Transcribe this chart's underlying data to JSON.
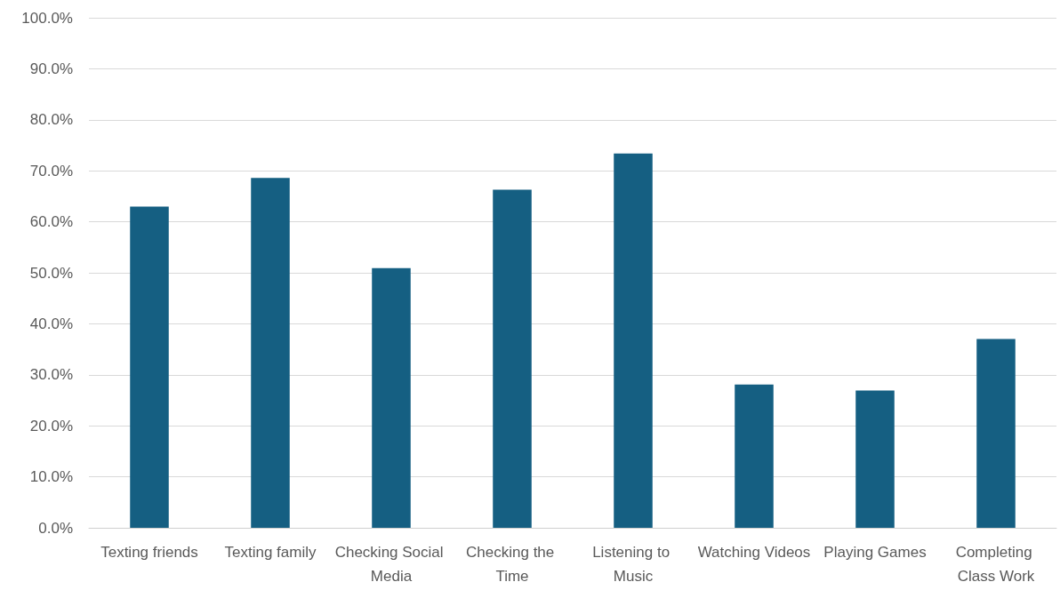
{
  "chart_data": {
    "type": "bar",
    "categories": [
      "Texting friends",
      "Texting family",
      "Checking Social Media",
      "Checking the Time",
      "Listening to Music",
      "Watching Videos",
      "Playing Games",
      "Completing Class Work"
    ],
    "values": [
      63.0,
      68.6,
      50.9,
      66.3,
      73.4,
      28.1,
      26.9,
      37.0
    ],
    "color": "#155f82",
    "ylim": [
      0,
      100
    ],
    "yticks": [
      {
        "value": 0,
        "label": "0.0%"
      },
      {
        "value": 10,
        "label": "10.0%"
      },
      {
        "value": 20,
        "label": "20.0%"
      },
      {
        "value": 30,
        "label": "30.0%"
      },
      {
        "value": 40,
        "label": "40.0%"
      },
      {
        "value": 50,
        "label": "50.0%"
      },
      {
        "value": 60,
        "label": "60.0%"
      },
      {
        "value": 70,
        "label": "70.0%"
      },
      {
        "value": 80,
        "label": "80.0%"
      },
      {
        "value": 90,
        "label": "90.0%"
      },
      {
        "value": 100,
        "label": "100.0%"
      }
    ],
    "grid": "y"
  }
}
